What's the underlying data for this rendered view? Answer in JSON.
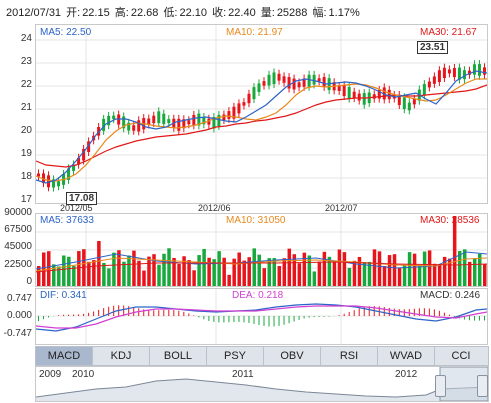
{
  "header": {
    "date": "2012/07/31",
    "open_label": "开:",
    "open": "22.15",
    "high_label": "高:",
    "high": "22.68",
    "low_label": "低:",
    "low": "22.10",
    "close_label": "收:",
    "close": "22.40",
    "volume_label": "量:",
    "volume": "25288",
    "change_label": "幅:",
    "change": "1.17%"
  },
  "price": {
    "axis": [
      "24",
      "23",
      "22",
      "21",
      "20",
      "19",
      "18",
      "17"
    ],
    "ma5": "MA5: 22.50",
    "ma10": "MA10: 21.97",
    "ma30": "MA30: 21.67",
    "high_marker": "23.51",
    "low_marker": "17.08",
    "dates": [
      "2012/05",
      "2012/06",
      "2012/07"
    ]
  },
  "volume": {
    "axis": [
      "90000",
      "67500",
      "45000",
      "22500",
      "0"
    ],
    "ma5": "MA5: 37633",
    "ma10": "MA10: 31050",
    "ma30": "MA30: 28536"
  },
  "macd": {
    "axis": [
      "0.747",
      "0.000",
      "-0.747"
    ],
    "dif": "DIF: 0.341",
    "dea": "DEA: 0.218",
    "macd": "MACD: 0.246"
  },
  "tabs": [
    "MACD",
    "KDJ",
    "BOLL",
    "PSY",
    "OBV",
    "RSI",
    "WVAD",
    "CCI"
  ],
  "navigator": {
    "years": [
      "2009",
      "2010",
      "2011",
      "2012"
    ]
  },
  "colors": {
    "up": "#e8141b",
    "down": "#18a93c",
    "ma5": "#2c63c9",
    "ma10": "#e8891b",
    "ma30": "#e01818",
    "dea": "#d23fd2"
  }
}
